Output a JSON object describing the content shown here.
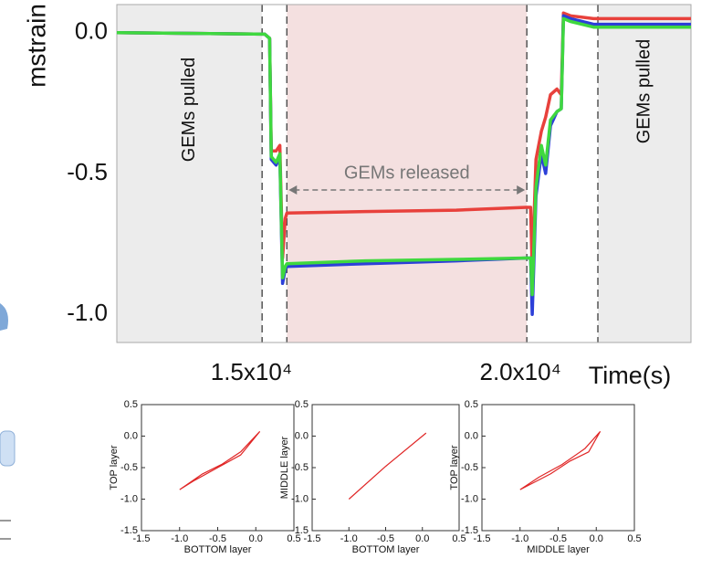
{
  "chart_data": [
    {
      "type": "line",
      "ylabel": "mstrain",
      "xlabel": "Time(s)",
      "xlim": [
        12500,
        23170
      ],
      "ylim": [
        -1.1,
        0.1
      ],
      "xticks": [
        {
          "value": 15000,
          "label": "1.5x10⁴"
        },
        {
          "value": 20000,
          "label": "2.0x10⁴"
        }
      ],
      "yticks": [
        {
          "value": 0,
          "label": "0.0"
        },
        -0.5,
        {
          "value": -1,
          "label": "-1.0"
        }
      ],
      "grid": false,
      "regions": [
        {
          "label": "GEMs pulled",
          "start": 12500,
          "end": 15200,
          "color": "#ececec"
        },
        {
          "label": "GEMs released",
          "start": 15660,
          "end": 20120,
          "color": "#f4e0e0"
        },
        {
          "label": "GEMs pulled",
          "start": 21440,
          "end": 23170,
          "color": "#ececec"
        }
      ],
      "x": [
        12500,
        15250,
        15340,
        15370,
        15460,
        15530,
        15580,
        15630,
        15660,
        17120,
        18810,
        20120,
        20190,
        20220,
        20290,
        20390,
        20470,
        20560,
        20680,
        20760,
        20800,
        20930,
        21360,
        22200,
        23170
      ],
      "series": [
        {
          "color": "#e8413c",
          "values": [
            0,
            -0.005,
            -0.02,
            -0.42,
            -0.42,
            -0.4,
            -0.8,
            -0.66,
            -0.64,
            -0.635,
            -0.63,
            -0.62,
            -0.62,
            -0.85,
            -0.45,
            -0.35,
            -0.3,
            -0.22,
            -0.2,
            -0.22,
            0.07,
            0.06,
            0.05,
            0.05,
            0.05
          ]
        },
        {
          "color": "#2c3fd8",
          "values": [
            0,
            -0.005,
            -0.02,
            -0.45,
            -0.47,
            -0.44,
            -0.89,
            -0.84,
            -0.83,
            -0.82,
            -0.81,
            -0.8,
            -0.8,
            -1.0,
            -0.58,
            -0.43,
            -0.5,
            -0.33,
            -0.28,
            -0.27,
            0.06,
            0.05,
            0.03,
            0.03,
            0.03
          ]
        },
        {
          "color": "#3fd83f",
          "values": [
            0,
            -0.005,
            -0.02,
            -0.44,
            -0.46,
            -0.43,
            -0.87,
            -0.83,
            -0.82,
            -0.81,
            -0.805,
            -0.8,
            -0.8,
            -0.93,
            -0.55,
            -0.4,
            -0.47,
            -0.31,
            -0.28,
            -0.27,
            0.05,
            0.04,
            0.02,
            0.02,
            0.02
          ]
        }
      ]
    },
    {
      "type": "line",
      "xlabel": "BOTTOM layer",
      "ylabel": "TOP layer",
      "xlim": [
        -1.5,
        0.5
      ],
      "ylim": [
        -1.5,
        0.5
      ],
      "xticks": [
        -1.5,
        {
          "value": -1,
          "label": "-1.0"
        },
        -0.5,
        {
          "value": 0,
          "label": "0.0"
        },
        0.5
      ],
      "yticks": [
        -1.5,
        {
          "value": -1,
          "label": "-1.0"
        },
        -0.5,
        {
          "value": 0,
          "label": "0.0"
        },
        0.5
      ],
      "x": [
        -1.0,
        -0.7,
        -0.45,
        -0.2,
        0.05,
        -0.2,
        -0.5,
        -0.8,
        -1.0
      ],
      "series": [
        {
          "color": "#e02626",
          "values": [
            -0.85,
            -0.6,
            -0.45,
            -0.25,
            0.07,
            -0.3,
            -0.5,
            -0.7,
            -0.85
          ]
        }
      ]
    },
    {
      "type": "line",
      "xlabel": "BOTTOM layer",
      "ylabel": "MIDDLE layer",
      "xlim": [
        -1.5,
        0.5
      ],
      "ylim": [
        -1.5,
        0.5
      ],
      "xticks": [
        -1.5,
        {
          "value": -1,
          "label": "-1.0"
        },
        -0.5,
        {
          "value": 0,
          "label": "0.0"
        },
        0.5
      ],
      "yticks": [
        -1.5,
        {
          "value": -1,
          "label": "-1.0"
        },
        -0.5,
        {
          "value": 0,
          "label": "0.0"
        },
        0.5
      ],
      "x": [
        -1.0,
        -0.5,
        0.05
      ],
      "series": [
        {
          "color": "#e02626",
          "values": [
            -1.0,
            -0.48,
            0.05
          ]
        }
      ]
    },
    {
      "type": "line",
      "xlabel": "MIDDLE layer",
      "ylabel": "TOP layer",
      "xlim": [
        -1.5,
        0.5
      ],
      "ylim": [
        -1.5,
        0.5
      ],
      "xticks": [
        -1.5,
        {
          "value": -1,
          "label": "-1.0"
        },
        -0.5,
        {
          "value": 0,
          "label": "0.0"
        },
        0.5
      ],
      "yticks": [
        -1.5,
        {
          "value": -1,
          "label": "-1.0"
        },
        -0.5,
        {
          "value": 0,
          "label": "0.0"
        },
        0.5
      ],
      "x": [
        -1.0,
        -0.6,
        -0.35,
        -0.1,
        0.05,
        -0.15,
        -0.45,
        -0.75,
        -1.0
      ],
      "series": [
        {
          "color": "#e02626",
          "values": [
            -0.85,
            -0.6,
            -0.4,
            -0.25,
            0.07,
            -0.2,
            -0.45,
            -0.65,
            -0.85
          ]
        }
      ]
    }
  ]
}
